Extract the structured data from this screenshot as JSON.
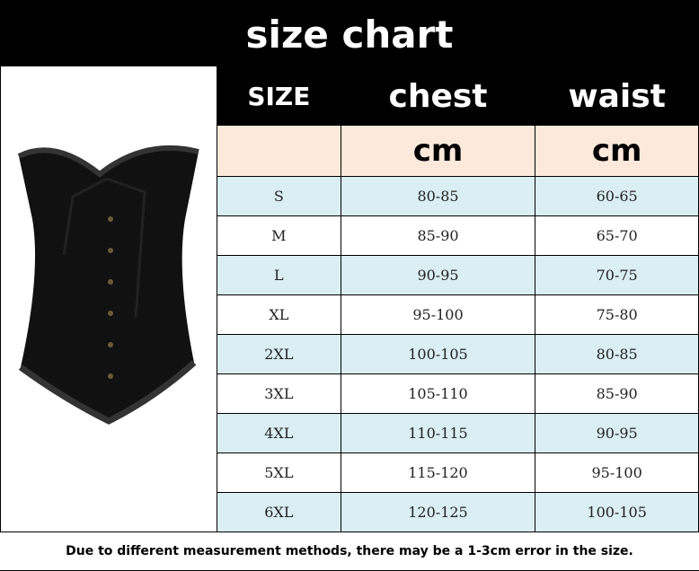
{
  "title": "size chart",
  "table": {
    "headers": [
      "SIZE",
      "chest",
      "waist"
    ],
    "units": [
      "",
      "cm",
      "cm"
    ],
    "rows": [
      [
        "S",
        "80-85",
        "60-65"
      ],
      [
        "M",
        "85-90",
        "65-70"
      ],
      [
        "L",
        "90-95",
        "70-75"
      ],
      [
        "XL",
        "95-100",
        "75-80"
      ],
      [
        "2XL",
        "100-105",
        "80-85"
      ],
      [
        "3XL",
        "105-110",
        "85-90"
      ],
      [
        "4XL",
        "110-115",
        "90-95"
      ],
      [
        "5XL",
        "115-120",
        "95-100"
      ],
      [
        "6XL",
        "120-125",
        "100-105"
      ]
    ]
  },
  "note": "Due to different measurement methods, there may be a 1-3cm error in the size.",
  "colors": {
    "header": "#000000",
    "unit_row": "#fde9db",
    "stripe": "#daeef3"
  }
}
